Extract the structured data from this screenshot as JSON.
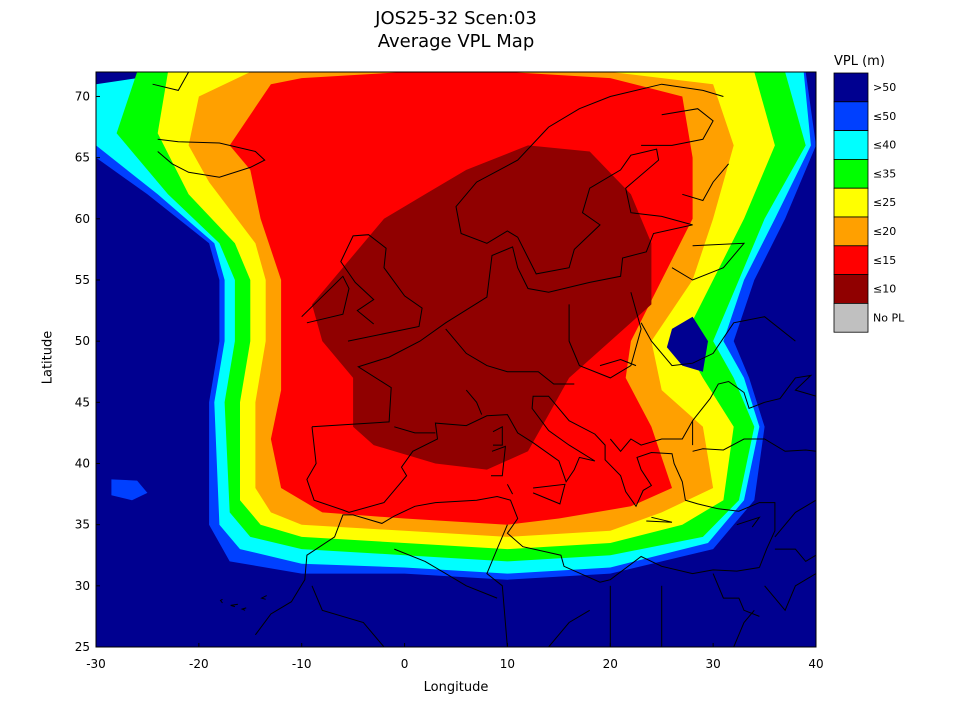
{
  "title": {
    "line1": "JOS25-32 Scen:03",
    "line2": "Average VPL Map"
  },
  "axes": {
    "xlabel": "Longitude",
    "ylabel": "Latitude",
    "xlim": [
      -30,
      40
    ],
    "ylim": [
      25,
      72
    ],
    "xticks": [
      -30,
      -20,
      -10,
      0,
      10,
      20,
      30,
      40
    ],
    "yticks": [
      25,
      30,
      35,
      40,
      45,
      50,
      55,
      60,
      65,
      70
    ]
  },
  "legend": {
    "title": "VPL (m)",
    "entries": [
      {
        "label": ">50",
        "color": "#000090"
      },
      {
        "label": "≤50",
        "color": "#0040ff"
      },
      {
        "label": "≤40",
        "color": "#00ffff"
      },
      {
        "label": "≤35",
        "color": "#00ff00"
      },
      {
        "label": "≤25",
        "color": "#ffff00"
      },
      {
        "label": "≤20",
        "color": "#ffa000"
      },
      {
        "label": "≤15",
        "color": "#ff0000"
      },
      {
        "label": "≤10",
        "color": "#900000"
      },
      {
        "label": "No PL",
        "color": "#c0c0c0"
      }
    ]
  },
  "chart_data": {
    "type": "heatmap",
    "title": "JOS25-32 Scen:03 Average VPL Map",
    "xlabel": "Longitude",
    "ylabel": "Latitude",
    "xlim": [
      -30,
      40
    ],
    "ylim": [
      25,
      72
    ],
    "grid": false,
    "legend_placement": "right",
    "background_level": ">50",
    "contours": [
      {
        "level": "≤50",
        "color": "#0040ff",
        "lonlat": [
          [
            -24,
            72
          ],
          [
            -10,
            72
          ],
          [
            10,
            72
          ],
          [
            20,
            72
          ],
          [
            39,
            72
          ],
          [
            40,
            66
          ],
          [
            37,
            60
          ],
          [
            34,
            55
          ],
          [
            32,
            50
          ],
          [
            33.5,
            47
          ],
          [
            35,
            43
          ],
          [
            34,
            37
          ],
          [
            30,
            33
          ],
          [
            20,
            31
          ],
          [
            10,
            30.5
          ],
          [
            0,
            31
          ],
          [
            -10,
            31
          ],
          [
            -17,
            32
          ],
          [
            -19,
            35
          ],
          [
            -19,
            45
          ],
          [
            -18,
            50
          ],
          [
            -18,
            55
          ],
          [
            -19,
            58
          ],
          [
            -25,
            62
          ],
          [
            -30,
            65
          ],
          [
            -30,
            70
          ]
        ]
      },
      {
        "level": "≤40",
        "color": "#00ffff",
        "lonlat": [
          [
            -22,
            72
          ],
          [
            -10,
            72
          ],
          [
            10,
            72
          ],
          [
            20,
            72
          ],
          [
            38.8,
            72
          ],
          [
            39.5,
            66
          ],
          [
            36,
            60
          ],
          [
            33,
            55
          ],
          [
            31,
            50
          ],
          [
            33,
            47
          ],
          [
            34.5,
            43
          ],
          [
            33,
            37
          ],
          [
            29.5,
            33.5
          ],
          [
            20,
            31.5
          ],
          [
            10,
            31
          ],
          [
            0,
            31.5
          ],
          [
            -10,
            31.8
          ],
          [
            -16,
            33
          ],
          [
            -18,
            35
          ],
          [
            -18.5,
            45
          ],
          [
            -17.5,
            50
          ],
          [
            -17.5,
            55
          ],
          [
            -18.5,
            58
          ],
          [
            -24,
            62
          ],
          [
            -30,
            66
          ],
          [
            -30,
            71
          ]
        ]
      },
      {
        "level": "≤35",
        "color": "#00ff00",
        "lonlat": [
          [
            -20,
            72
          ],
          [
            -10,
            72
          ],
          [
            10,
            72
          ],
          [
            20,
            72
          ],
          [
            37,
            72
          ],
          [
            39,
            66
          ],
          [
            35,
            60
          ],
          [
            32.5,
            55
          ],
          [
            30,
            50
          ],
          [
            32,
            47
          ],
          [
            34,
            43
          ],
          [
            32.5,
            37
          ],
          [
            29,
            34
          ],
          [
            20,
            32.5
          ],
          [
            10,
            32
          ],
          [
            0,
            32.5
          ],
          [
            -10,
            33
          ],
          [
            -15,
            34
          ],
          [
            -17,
            36
          ],
          [
            -17.5,
            45
          ],
          [
            -16.5,
            50
          ],
          [
            -16.5,
            55
          ],
          [
            -18,
            58
          ],
          [
            -23,
            62
          ],
          [
            -28,
            67
          ],
          [
            -26,
            72
          ]
        ]
      },
      {
        "level": "≤25",
        "color": "#ffff00",
        "lonlat": [
          [
            -17,
            72
          ],
          [
            -10,
            72
          ],
          [
            10,
            72
          ],
          [
            20,
            72
          ],
          [
            34,
            72
          ],
          [
            36,
            66
          ],
          [
            33,
            60
          ],
          [
            30,
            55
          ],
          [
            27,
            50
          ],
          [
            29,
            47
          ],
          [
            32,
            43
          ],
          [
            31,
            37
          ],
          [
            27,
            35
          ],
          [
            20,
            33.5
          ],
          [
            10,
            33
          ],
          [
            0,
            33.5
          ],
          [
            -10,
            34
          ],
          [
            -14,
            35
          ],
          [
            -16,
            37
          ],
          [
            -16,
            45
          ],
          [
            -15,
            50
          ],
          [
            -15,
            55
          ],
          [
            -16.5,
            58
          ],
          [
            -21,
            62
          ],
          [
            -24,
            67
          ],
          [
            -23,
            72
          ]
        ]
      },
      {
        "level": "≤20",
        "color": "#ffa000",
        "lonlat": [
          [
            -15,
            72
          ],
          [
            -10,
            72
          ],
          [
            10,
            72
          ],
          [
            20,
            72
          ],
          [
            30,
            71
          ],
          [
            32,
            66
          ],
          [
            30,
            60
          ],
          [
            28,
            55
          ],
          [
            24,
            50
          ],
          [
            25,
            46
          ],
          [
            29,
            43
          ],
          [
            30,
            38
          ],
          [
            25,
            36
          ],
          [
            20,
            34.5
          ],
          [
            10,
            34
          ],
          [
            0,
            34.5
          ],
          [
            -10,
            35
          ],
          [
            -13,
            36
          ],
          [
            -14.5,
            38
          ],
          [
            -14.5,
            45
          ],
          [
            -13.5,
            50
          ],
          [
            -13.5,
            55
          ],
          [
            -14.5,
            58
          ],
          [
            -19,
            63
          ],
          [
            -21,
            66
          ],
          [
            -20,
            70
          ]
        ]
      },
      {
        "level": "≤15",
        "color": "#ff0000",
        "lonlat": [
          [
            -13,
            71
          ],
          [
            -10,
            71.5
          ],
          [
            0,
            72
          ],
          [
            10,
            72
          ],
          [
            20,
            71.5
          ],
          [
            27,
            70
          ],
          [
            28,
            65
          ],
          [
            28,
            60
          ],
          [
            25,
            55
          ],
          [
            22,
            50
          ],
          [
            21.5,
            47
          ],
          [
            24,
            43
          ],
          [
            26,
            38
          ],
          [
            22,
            36.5
          ],
          [
            15,
            35.5
          ],
          [
            10,
            35
          ],
          [
            0,
            35.5
          ],
          [
            -8,
            36
          ],
          [
            -12,
            38
          ],
          [
            -13,
            42
          ],
          [
            -12,
            46
          ],
          [
            -12,
            50
          ],
          [
            -12,
            55
          ],
          [
            -14,
            60
          ],
          [
            -15,
            64
          ],
          [
            -17,
            66
          ]
        ]
      },
      {
        "level": "≤10",
        "color": "#900000",
        "lonlat": [
          [
            -5,
            57
          ],
          [
            -2,
            60
          ],
          [
            2,
            62
          ],
          [
            6,
            64
          ],
          [
            12,
            66
          ],
          [
            18,
            65.5
          ],
          [
            22,
            62
          ],
          [
            24,
            58
          ],
          [
            24,
            53
          ],
          [
            20,
            50
          ],
          [
            16,
            47
          ],
          [
            14,
            44
          ],
          [
            12,
            41
          ],
          [
            8,
            39.5
          ],
          [
            3,
            40
          ],
          [
            -3,
            41.5
          ],
          [
            -5,
            43
          ],
          [
            -5,
            47
          ],
          [
            -8,
            50
          ],
          [
            -9,
            53
          ]
        ]
      },
      {
        "level": ">50",
        "color": "#000090",
        "lonlat": [
          [
            26,
            51
          ],
          [
            28,
            52
          ],
          [
            29.5,
            50
          ],
          [
            29,
            47.5
          ],
          [
            27,
            48
          ],
          [
            25.5,
            49.5
          ]
        ]
      },
      {
        "level": "≤50",
        "color": "#0040ff",
        "lonlat": [
          [
            -28.5,
            38.7
          ],
          [
            -26,
            38.6
          ],
          [
            -25,
            37.6
          ],
          [
            -26.5,
            37.0
          ],
          [
            -28.5,
            37.4
          ]
        ]
      }
    ]
  }
}
